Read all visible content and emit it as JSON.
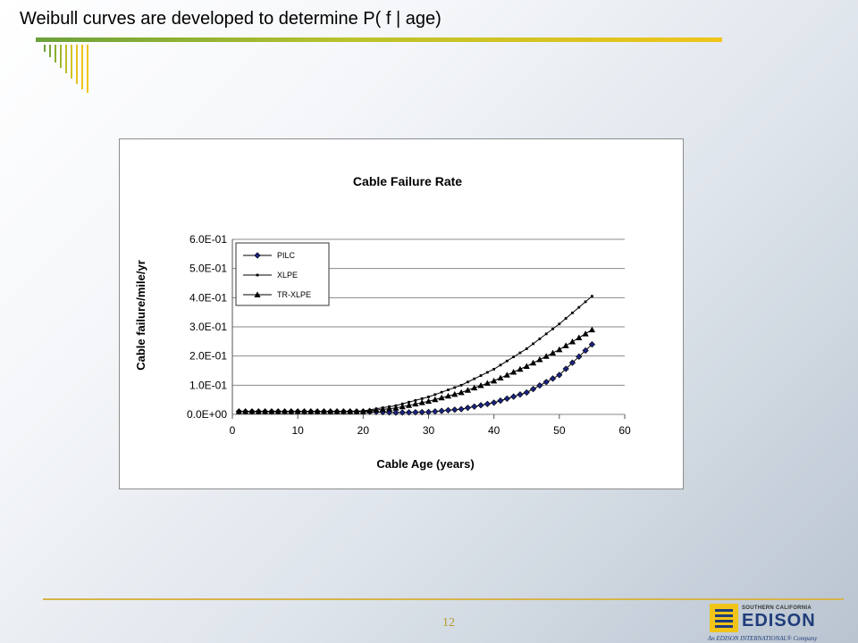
{
  "slide": {
    "title": "Weibull curves are developed to determine P( f | age)",
    "page_number": "12",
    "logo": {
      "small_text": "SOUTHERN CALIFORNIA",
      "name": "EDISON",
      "tagline": "An EDISON INTERNATIONAL® Company"
    },
    "colors": {
      "title_rule_start": "#6aa13a",
      "title_rule_end": "#f0c419",
      "footer_rule": "#d7b34a",
      "logo_yellow": "#f0c419",
      "logo_blue": "#1f3d7a"
    }
  },
  "chart_data": {
    "type": "line",
    "title": "Cable Failure Rate",
    "xlabel": "Cable Age (years)",
    "ylabel": "Cable failure/mile/yr",
    "xlim": [
      0,
      60
    ],
    "ylim": [
      0,
      0.6
    ],
    "x_ticks": [
      0,
      10,
      20,
      30,
      40,
      50,
      60
    ],
    "x_tick_labels": [
      "0",
      "10",
      "20",
      "30",
      "40",
      "50",
      "60"
    ],
    "y_ticks": [
      0,
      0.1,
      0.2,
      0.3,
      0.4,
      0.5,
      0.6
    ],
    "y_tick_labels": [
      "0.0E+00",
      "1.0E-01",
      "2.0E-01",
      "3.0E-01",
      "4.0E-01",
      "5.0E-01",
      "6.0E-01"
    ],
    "grid": "horizontal",
    "legend_position": "top-left",
    "x": [
      1,
      5,
      10,
      15,
      20,
      25,
      30,
      35,
      40,
      45,
      50,
      55
    ],
    "series": [
      {
        "name": "PILC",
        "marker": "diamond",
        "color": "#1a237e",
        "values": [
          0.01,
          0.01,
          0.01,
          0.01,
          0.01,
          0.006,
          0.008,
          0.018,
          0.04,
          0.075,
          0.135,
          0.24
        ]
      },
      {
        "name": "XLPE",
        "marker": "small-square",
        "color": "#000000",
        "values": [
          0.01,
          0.01,
          0.01,
          0.01,
          0.012,
          0.03,
          0.06,
          0.1,
          0.155,
          0.225,
          0.31,
          0.405
        ]
      },
      {
        "name": "TR-XLPE",
        "marker": "triangle",
        "color": "#000000",
        "values": [
          0.01,
          0.01,
          0.01,
          0.01,
          0.01,
          0.022,
          0.045,
          0.075,
          0.115,
          0.165,
          0.222,
          0.29
        ]
      }
    ]
  }
}
